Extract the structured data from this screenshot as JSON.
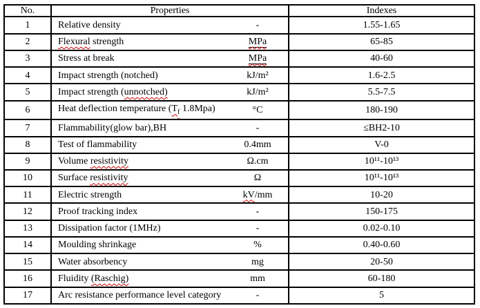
{
  "colors": {
    "background": "#ffffff",
    "border": "#000000",
    "text": "#000000",
    "squiggle": "#cc0000"
  },
  "table": {
    "headers": {
      "no": "No.",
      "properties": "Properties",
      "indexes": "Indexes"
    },
    "rows": [
      {
        "no": "1",
        "property": [
          {
            "t": "Relative density"
          }
        ],
        "unit": [
          {
            "t": "-"
          }
        ],
        "index": "1.55-1.65"
      },
      {
        "no": "2",
        "property": [
          {
            "t": "Flexural",
            "s": "sp"
          },
          {
            "t": " strength"
          }
        ],
        "unit": [
          {
            "t": "MPa",
            "s": "u sp"
          }
        ],
        "index": "65-85"
      },
      {
        "no": "3",
        "property": [
          {
            "t": "Stress at break"
          }
        ],
        "unit": [
          {
            "t": "MPa",
            "s": "u sp"
          }
        ],
        "index": "40-60"
      },
      {
        "no": "4",
        "property": [
          {
            "t": "Impact strength (notched)"
          }
        ],
        "unit": [
          {
            "t": "kJ/m²"
          }
        ],
        "index": "1.6-2.5"
      },
      {
        "no": "5",
        "property": [
          {
            "t": "Impact strength ("
          },
          {
            "t": "unnotched)",
            "s": "sp"
          }
        ],
        "unit": [
          {
            "t": "kJ/m²"
          }
        ],
        "index": "5.5-7.5"
      },
      {
        "no": "6",
        "property": [
          {
            "t": "Heat deflection temperature ("
          },
          {
            "t": "T",
            "s": "sp"
          },
          {
            "t": "f",
            "s": "sub sp"
          },
          {
            "t": " 1.8Mpa)"
          }
        ],
        "unit": [
          {
            "t": "°C"
          }
        ],
        "index": "180-190"
      },
      {
        "no": "7",
        "property": [
          {
            "t": "Flammability(glow bar),BH"
          }
        ],
        "unit": [
          {
            "t": "-"
          }
        ],
        "index": "≤BH2-10"
      },
      {
        "no": "8",
        "property": [
          {
            "t": "Test of flammability"
          }
        ],
        "unit": [
          {
            "t": "0.4mm"
          }
        ],
        "index": "V-0"
      },
      {
        "no": "9",
        "property": [
          {
            "t": "Volume "
          },
          {
            "t": "resistivity",
            "s": "sp"
          }
        ],
        "unit": [
          {
            "t": "Ω.cm"
          }
        ],
        "index": "10¹¹-10¹³"
      },
      {
        "no": "10",
        "property": [
          {
            "t": "Surface "
          },
          {
            "t": "resistivity",
            "s": "sp"
          }
        ],
        "unit": [
          {
            "t": "Ω"
          }
        ],
        "index": "10¹¹-10¹³"
      },
      {
        "no": "11",
        "property": [
          {
            "t": "Electric strength"
          }
        ],
        "unit": [
          {
            "t": "kV",
            "s": "sp"
          },
          {
            "t": "/mm"
          }
        ],
        "index": "10-20"
      },
      {
        "no": "12",
        "property": [
          {
            "t": "Proof tracking index"
          }
        ],
        "unit": [
          {
            "t": "-"
          }
        ],
        "index": "150-175"
      },
      {
        "no": "13",
        "property": [
          {
            "t": "Dissipation factor (1MHz)"
          }
        ],
        "unit": [
          {
            "t": "-"
          }
        ],
        "index": "0.02-0.10"
      },
      {
        "no": "14",
        "property": [
          {
            "t": "Moulding shrinkage"
          }
        ],
        "unit": [
          {
            "t": "%"
          }
        ],
        "index": "0.40-0.60"
      },
      {
        "no": "15",
        "property": [
          {
            "t": "Water absorbency"
          }
        ],
        "unit": [
          {
            "t": "mg"
          }
        ],
        "index": "20-50"
      },
      {
        "no": "16",
        "property": [
          {
            "t": "Fluidity "
          },
          {
            "t": "(Raschig)",
            "s": "sp"
          }
        ],
        "unit": [
          {
            "t": "mm"
          }
        ],
        "index": "60-180"
      },
      {
        "no": "17",
        "property": [
          {
            "t": "Arc resistance performance level category"
          }
        ],
        "unit": [
          {
            "t": "-"
          }
        ],
        "index": "5"
      }
    ]
  }
}
